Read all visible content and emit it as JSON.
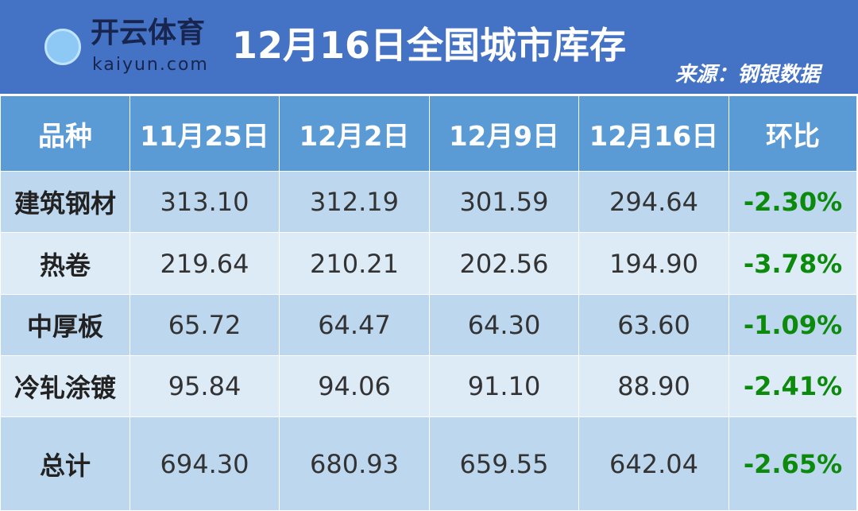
{
  "title": "12月16日全国城市库存",
  "source": "来源：钢银数据",
  "headers": [
    "品种",
    "11月25日",
    "12月2日",
    "12月9日",
    "12月16日",
    "环比"
  ],
  "rows": [
    {
      "name": "建筑钢材",
      "v": [
        "313.10",
        "312.19",
        "301.59",
        "294.64"
      ],
      "chg": "-2.30%"
    },
    {
      "name": "热卷",
      "v": [
        "219.64",
        "210.21",
        "202.56",
        "194.90"
      ],
      "chg": "-3.78%"
    },
    {
      "name": "中厚板",
      "v": [
        "65.72",
        "64.47",
        "64.30",
        "63.60"
      ],
      "chg": "-1.09%"
    },
    {
      "name": "冷轧涂镀",
      "v": [
        "95.84",
        "94.06",
        "91.10",
        "88.90"
      ],
      "chg": "-2.41%"
    },
    {
      "name": "总计",
      "v": [
        "694.30",
        "680.93",
        "659.55",
        "642.04"
      ],
      "chg": "-2.65%"
    }
  ],
  "watermark": {
    "brand_cn": "开云体育",
    "brand_en": "kaiyun.com"
  },
  "colors": {
    "title_bg": "#4472C4",
    "header_bg": "#5B9BD5",
    "row_dark": "#BDD7EE",
    "row_light": "#DDEBF7",
    "negative": "#0B8A0B"
  }
}
